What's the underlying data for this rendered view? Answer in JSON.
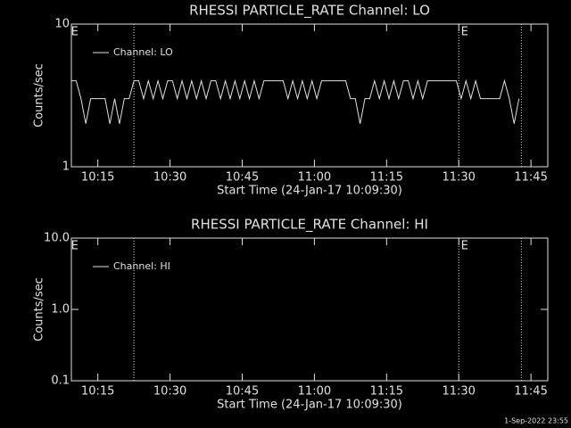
{
  "chart_data": [
    {
      "type": "line",
      "title": "RHESSI PARTICLE_RATE Channel: LO",
      "xlabel": "Start Time (24-Jan-17 10:09:30)",
      "ylabel": "Counts/sec",
      "log_y": true,
      "ylim": [
        1,
        10
      ],
      "yticks": [
        1,
        10
      ],
      "xlim": [
        0,
        99
      ],
      "xticks": [
        {
          "value": 5.5,
          "label": "10:15"
        },
        {
          "value": 20.5,
          "label": "10:30"
        },
        {
          "value": 35.5,
          "label": "10:45"
        },
        {
          "value": 50.5,
          "label": "11:00"
        },
        {
          "value": 65.5,
          "label": "11:15"
        },
        {
          "value": 80.5,
          "label": "11:30"
        },
        {
          "value": 95.5,
          "label": "11:45"
        }
      ],
      "vlines": [
        13,
        80.5,
        93.5
      ],
      "annotations": [
        {
          "text": "E",
          "x": 0.7
        },
        {
          "text": "E",
          "x": 81.7
        }
      ],
      "legend": "top-left",
      "x": [
        0,
        1,
        2,
        3,
        4,
        5,
        6,
        7,
        8,
        9,
        10,
        11,
        12,
        13,
        14,
        15,
        16,
        17,
        18,
        19,
        20,
        21,
        22,
        23,
        24,
        25,
        26,
        27,
        28,
        29,
        30,
        31,
        32,
        33,
        34,
        35,
        36,
        37,
        38,
        39,
        40,
        41,
        42,
        43,
        44,
        45,
        46,
        47,
        48,
        49,
        50,
        51,
        52,
        53,
        54,
        55,
        56,
        57,
        58,
        59,
        60,
        61,
        62,
        63,
        64,
        65,
        66,
        67,
        68,
        69,
        70,
        71,
        72,
        73,
        74,
        75,
        76,
        77,
        78,
        79,
        80,
        81,
        82,
        83,
        84,
        85,
        86,
        87,
        88,
        89,
        90,
        91,
        92,
        93
      ],
      "series": [
        {
          "name": "Channel: LO",
          "color": "#e0e0e0",
          "values": [
            4,
            4,
            3,
            2,
            3,
            3,
            3,
            3,
            2,
            3,
            2,
            3,
            3,
            4,
            4,
            3,
            4,
            3,
            4,
            3,
            4,
            4,
            3,
            4,
            3,
            4,
            3,
            4,
            3,
            4,
            4,
            3,
            4,
            3,
            4,
            3,
            4,
            3,
            4,
            3,
            4,
            4,
            4,
            4,
            4,
            3,
            4,
            3,
            4,
            3,
            4,
            3,
            4,
            4,
            4,
            4,
            4,
            4,
            3,
            3,
            2,
            3,
            3,
            4,
            3,
            4,
            3,
            4,
            3,
            4,
            4,
            3,
            4,
            3,
            4,
            4,
            4,
            4,
            4,
            4,
            4,
            3,
            4,
            3,
            4,
            3,
            3,
            3,
            3,
            3,
            4,
            3,
            2,
            3
          ]
        }
      ]
    },
    {
      "type": "line",
      "title": "RHESSI PARTICLE_RATE Channel: HI",
      "xlabel": "Start Time (24-Jan-17 10:09:30)",
      "ylabel": "Counts/sec",
      "log_y": true,
      "ylim": [
        0.1,
        10
      ],
      "yticks": [
        0.1,
        {
          "value": 1,
          "label": "1.0"
        },
        {
          "value": 10,
          "label": "10.0"
        }
      ],
      "xlim": [
        0,
        99
      ],
      "xticks": [
        {
          "value": 5.5,
          "label": "10:15"
        },
        {
          "value": 20.5,
          "label": "10:30"
        },
        {
          "value": 35.5,
          "label": "10:45"
        },
        {
          "value": 50.5,
          "label": "11:00"
        },
        {
          "value": 65.5,
          "label": "11:15"
        },
        {
          "value": 80.5,
          "label": "11:30"
        },
        {
          "value": 95.5,
          "label": "11:45"
        }
      ],
      "vlines": [
        13,
        80.5,
        93.5
      ],
      "annotations": [
        {
          "text": "E",
          "x": 0.7
        },
        {
          "text": "E",
          "x": 81.7
        }
      ],
      "legend": "top-left",
      "x": [],
      "series": [
        {
          "name": "Channel: HI",
          "color": "#e0e0e0",
          "values": []
        }
      ]
    }
  ],
  "footer": "1-Sep-2022 23:55"
}
